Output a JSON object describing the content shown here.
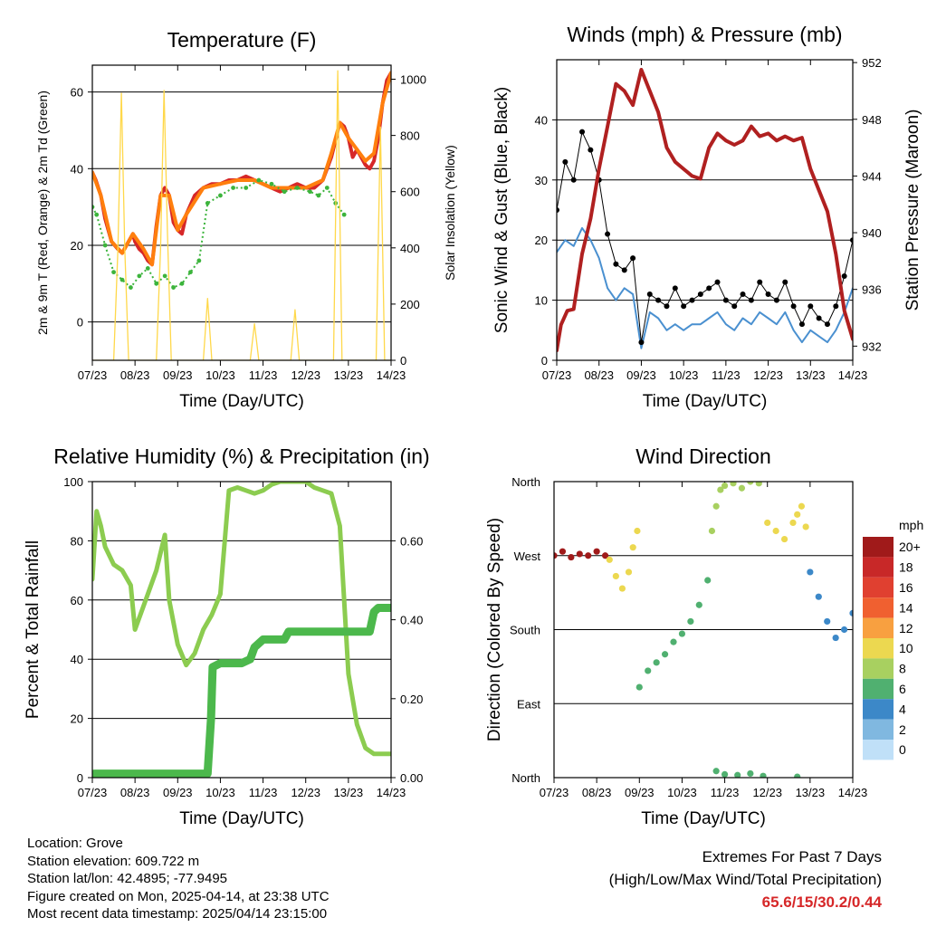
{
  "x_ticks": [
    "07/23",
    "08/23",
    "09/23",
    "10/23",
    "11/23",
    "12/23",
    "13/23",
    "14/23"
  ],
  "colors": {
    "temp_2m": "#d62728",
    "temp_9m": "#ff7f0e",
    "dewpoint": "#3cb43c",
    "solar": "#ffd84a",
    "wind": "#4a90d0",
    "gust": "#000000",
    "pressure": "#b02020",
    "rh": "#8ccc50",
    "rain": "#4cb84c"
  },
  "chart_data": [
    {
      "id": "temperature",
      "type": "line",
      "title": "Temperature (F)",
      "xlabel": "Time (Day/UTC)",
      "ylabel": "2m & 9m T (Red, Orange) & 2m Td (Green)",
      "ylabel_right": "Solar Insolation (Yellow)",
      "ylim": [
        -10,
        67
      ],
      "ylim_right": [
        0,
        1050
      ],
      "yticks": [
        0,
        20,
        40,
        60
      ],
      "yticks_right": [
        0,
        200,
        400,
        600,
        800,
        1000
      ],
      "grid": true,
      "series": [
        {
          "name": "2m T",
          "color_key": "temp_2m",
          "x": [
            0,
            0.08,
            0.2,
            0.3,
            0.45,
            0.6,
            0.7,
            0.8,
            0.95,
            1.0,
            1.1,
            1.2,
            1.3,
            1.4,
            1.5,
            1.6,
            1.7,
            1.8,
            1.9,
            2.0,
            2.1,
            2.2,
            2.4,
            2.6,
            2.8,
            3.0,
            3.2,
            3.4,
            3.6,
            3.8,
            4.0,
            4.2,
            4.4,
            4.6,
            4.8,
            5.0,
            5.2,
            5.4,
            5.6,
            5.8,
            5.9,
            6.0,
            6.1,
            6.2,
            6.3,
            6.4,
            6.5,
            6.6,
            6.7,
            6.8,
            6.9,
            7.0
          ],
          "y": [
            39,
            37,
            33,
            27,
            21,
            19,
            18,
            20,
            23,
            21,
            19,
            18,
            16,
            15,
            25,
            33,
            35,
            33,
            26,
            24,
            23,
            28,
            33,
            35,
            36,
            36,
            37,
            37,
            38,
            37,
            36,
            35,
            34,
            35,
            36,
            35,
            35,
            37,
            43,
            52,
            51,
            48,
            43,
            45,
            43,
            41,
            40,
            42,
            48,
            57,
            63,
            65
          ]
        },
        {
          "name": "9m T",
          "color_key": "temp_9m",
          "x": [
            0,
            0.2,
            0.45,
            0.7,
            0.95,
            1.2,
            1.4,
            1.6,
            1.8,
            2.0,
            2.2,
            2.6,
            3.0,
            3.4,
            3.8,
            4.2,
            4.6,
            5.0,
            5.4,
            5.6,
            5.8,
            6.0,
            6.2,
            6.4,
            6.6,
            6.8,
            7.0
          ],
          "y": [
            39,
            33,
            21,
            18,
            23,
            19,
            15,
            33,
            33,
            24,
            28,
            35,
            36,
            37,
            37,
            35,
            35,
            35,
            37,
            44,
            52,
            48,
            45,
            42,
            44,
            57,
            65
          ]
        },
        {
          "name": "2m Td",
          "color_key": "dewpoint",
          "x": [
            0,
            0.1,
            0.3,
            0.5,
            0.7,
            0.9,
            1.1,
            1.3,
            1.5,
            1.7,
            1.9,
            2.1,
            2.3,
            2.5,
            2.7,
            3.0,
            3.3,
            3.6,
            3.9,
            4.2,
            4.5,
            4.8,
            5.1,
            5.3,
            5.5,
            5.7,
            5.9
          ],
          "y": [
            30,
            28,
            20,
            13,
            11,
            9,
            12,
            14,
            10,
            12,
            9,
            10,
            13,
            16,
            31,
            33,
            35,
            35,
            37,
            36,
            34,
            35,
            34,
            33,
            35,
            31,
            28
          ]
        },
        {
          "name": "Solar",
          "color_key": "solar",
          "axis": "right",
          "x": [
            0,
            0.3,
            0.5,
            0.6,
            0.68,
            0.76,
            0.85,
            1.0,
            1.3,
            1.5,
            1.6,
            1.68,
            1.76,
            1.85,
            2.0,
            2.4,
            2.6,
            2.7,
            2.8,
            3.0,
            3.5,
            3.7,
            3.8,
            3.9,
            4.5,
            4.65,
            4.75,
            4.85,
            5.5,
            5.65,
            5.75,
            5.85,
            6.5,
            6.65,
            6.75,
            6.85,
            7.0
          ],
          "y": [
            0,
            0,
            0,
            400,
            950,
            400,
            0,
            0,
            0,
            0,
            400,
            960,
            450,
            0,
            0,
            0,
            0,
            220,
            0,
            0,
            0,
            0,
            130,
            0,
            0,
            0,
            180,
            0,
            0,
            0,
            1030,
            0,
            0,
            0,
            830,
            0,
            0
          ]
        }
      ]
    },
    {
      "id": "winds",
      "type": "line",
      "title": "Winds (mph) & Pressure (mb)",
      "xlabel": "Time (Day/UTC)",
      "ylabel": "Sonic Wind & Gust (Blue, Black)",
      "ylabel_right": "Station Pressure (Maroon)",
      "ylim": [
        0,
        50
      ],
      "ylim_right": [
        931,
        952.2
      ],
      "yticks": [
        0,
        10,
        20,
        30,
        40
      ],
      "yticks_right": [
        932,
        936,
        940,
        944,
        948,
        952
      ],
      "grid": true,
      "series": [
        {
          "name": "Sonic Wind",
          "color_key": "wind",
          "x": [
            0,
            0.2,
            0.4,
            0.6,
            0.8,
            1.0,
            1.2,
            1.4,
            1.6,
            1.8,
            2.0,
            2.2,
            2.4,
            2.6,
            2.8,
            3.0,
            3.2,
            3.4,
            3.6,
            3.8,
            4.0,
            4.2,
            4.4,
            4.6,
            4.8,
            5.0,
            5.2,
            5.4,
            5.6,
            5.8,
            6.0,
            6.2,
            6.4,
            6.6,
            6.8,
            7.0
          ],
          "y": [
            18,
            20,
            19,
            22,
            20,
            17,
            12,
            10,
            12,
            11,
            2,
            8,
            7,
            5,
            6,
            5,
            6,
            6,
            7,
            8,
            6,
            5,
            7,
            6,
            8,
            7,
            6,
            8,
            5,
            3,
            5,
            4,
            3,
            5,
            8,
            12
          ]
        },
        {
          "name": "Gust",
          "color_key": "gust",
          "x": [
            0,
            0.2,
            0.4,
            0.6,
            0.8,
            1.0,
            1.2,
            1.4,
            1.6,
            1.8,
            2.0,
            2.2,
            2.4,
            2.6,
            2.8,
            3.0,
            3.2,
            3.4,
            3.6,
            3.8,
            4.0,
            4.2,
            4.4,
            4.6,
            4.8,
            5.0,
            5.2,
            5.4,
            5.6,
            5.8,
            6.0,
            6.2,
            6.4,
            6.6,
            6.8,
            7.0
          ],
          "y": [
            25,
            33,
            30,
            38,
            35,
            30,
            21,
            16,
            15,
            17,
            3,
            11,
            10,
            9,
            12,
            9,
            10,
            11,
            12,
            13,
            10,
            9,
            11,
            10,
            13,
            11,
            10,
            13,
            9,
            6,
            9,
            7,
            6,
            9,
            14,
            20
          ]
        },
        {
          "name": "Pressure",
          "color_key": "pressure",
          "axis": "right",
          "x": [
            0,
            0.1,
            0.25,
            0.4,
            0.6,
            0.8,
            1.0,
            1.2,
            1.4,
            1.6,
            1.8,
            2.0,
            2.2,
            2.4,
            2.6,
            2.8,
            3.0,
            3.2,
            3.4,
            3.6,
            3.8,
            4.0,
            4.2,
            4.4,
            4.6,
            4.8,
            5.0,
            5.2,
            5.4,
            5.6,
            5.8,
            6.0,
            6.2,
            6.4,
            6.6,
            6.8,
            7.0
          ],
          "y": [
            931.7,
            933.5,
            934.5,
            934.6,
            938.5,
            941,
            944.5,
            947.5,
            950.5,
            950,
            949,
            951.5,
            950,
            948.5,
            946,
            945,
            944.5,
            944,
            943.8,
            946,
            947,
            946.5,
            946.2,
            946.5,
            947.5,
            946.8,
            947,
            946.5,
            946.8,
            946.5,
            946.7,
            944.5,
            943,
            941.5,
            938.5,
            934.5,
            932.5
          ]
        }
      ]
    },
    {
      "id": "humidity",
      "type": "line",
      "title": "Relative Humidity (%) & Precipitation (in)",
      "xlabel": "Time (Day/UTC)",
      "ylabel": "Percent & Total Rainfall",
      "ylim": [
        0,
        100
      ],
      "ylim_right": [
        0,
        0.75
      ],
      "yticks": [
        0,
        20,
        40,
        60,
        80,
        100
      ],
      "yticks_right": [
        "0.00",
        "0.20",
        "0.40",
        "0.60"
      ],
      "grid": true,
      "series": [
        {
          "name": "RH",
          "color_key": "rh",
          "x": [
            0,
            0.1,
            0.2,
            0.3,
            0.5,
            0.7,
            0.9,
            1.0,
            1.2,
            1.3,
            1.5,
            1.7,
            1.8,
            2.0,
            2.2,
            2.4,
            2.6,
            2.8,
            3.0,
            3.2,
            3.4,
            3.6,
            3.8,
            4.0,
            4.2,
            4.4,
            4.6,
            4.8,
            5.0,
            5.2,
            5.4,
            5.6,
            5.8,
            6.0,
            6.2,
            6.4,
            6.6,
            6.8,
            7.0
          ],
          "y": [
            67,
            90,
            85,
            78,
            72,
            70,
            65,
            50,
            58,
            62,
            70,
            82,
            60,
            45,
            38,
            42,
            50,
            55,
            62,
            97,
            98,
            97,
            96,
            97,
            99,
            100,
            100,
            100,
            100,
            98,
            97,
            96,
            85,
            35,
            18,
            10,
            8,
            8,
            8
          ]
        },
        {
          "name": "Total Rainfall",
          "color_key": "rain",
          "axis": "right",
          "x": [
            0,
            0.05,
            2.7,
            2.78,
            2.82,
            3.0,
            3.5,
            3.7,
            3.8,
            4.0,
            4.3,
            4.5,
            4.6,
            4.8,
            5.0,
            5.5,
            6.0,
            6.5,
            6.6,
            6.7,
            7.0
          ],
          "y": [
            0.0,
            0.01,
            0.01,
            0.15,
            0.28,
            0.29,
            0.29,
            0.3,
            0.33,
            0.35,
            0.35,
            0.35,
            0.37,
            0.37,
            0.37,
            0.37,
            0.37,
            0.37,
            0.42,
            0.43,
            0.43
          ]
        }
      ]
    },
    {
      "id": "direction",
      "type": "scatter",
      "title": "Wind Direction",
      "xlabel": "Time (Day/UTC)",
      "ylabel": "Direction (Colored By Speed)",
      "ylim": [
        0,
        360
      ],
      "yticks": [
        "North",
        "East",
        "South",
        "West",
        "North"
      ],
      "grid": true,
      "colorbar_label": "mph",
      "colorbar_labels": [
        "20+",
        "18",
        "16",
        "14",
        "12",
        "10",
        "8",
        "6",
        "4",
        "2",
        "0"
      ],
      "colorbar_colors": [
        "#a01a1a",
        "#c82828",
        "#e04030",
        "#f06030",
        "#f8a040",
        "#ecd850",
        "#a8d060",
        "#50b070",
        "#3c88c8",
        "#80b8e0",
        "#c0e0f8"
      ],
      "points": [
        {
          "x": [
            0,
            0.2,
            0.4,
            0.6,
            0.8,
            1.0,
            1.2
          ],
          "y": [
            270,
            275,
            268,
            272,
            270,
            275,
            270
          ],
          "speed": 20
        },
        {
          "x": [
            1.3,
            1.45,
            1.6,
            1.75,
            1.85,
            1.95
          ],
          "y": [
            265,
            245,
            230,
            250,
            280,
            300
          ],
          "speed": 10
        },
        {
          "x": [
            2.0,
            2.2,
            2.4,
            2.6,
            2.8,
            3.0,
            3.2,
            3.4,
            3.6
          ],
          "y": [
            110,
            130,
            140,
            150,
            165,
            175,
            190,
            210,
            240
          ],
          "speed": 6
        },
        {
          "x": [
            3.7,
            3.8,
            3.9,
            4.0,
            4.2,
            4.4,
            4.6,
            4.8
          ],
          "y": [
            300,
            330,
            350,
            355,
            358,
            352,
            360,
            358
          ],
          "speed": 8
        },
        {
          "x": [
            5.0,
            5.2,
            5.4,
            5.6,
            5.7,
            5.8,
            5.9
          ],
          "y": [
            310,
            300,
            290,
            310,
            320,
            330,
            305
          ],
          "speed": 10
        },
        {
          "x": [
            6.0,
            6.2,
            6.4,
            6.6,
            6.8,
            7.0
          ],
          "y": [
            250,
            220,
            190,
            170,
            180,
            200
          ],
          "speed": 4
        },
        {
          "x": [
            3.8,
            4.0,
            4.3,
            4.6,
            4.9,
            5.7
          ],
          "y": [
            8,
            4,
            3,
            5,
            2,
            1
          ],
          "speed": 6
        }
      ]
    }
  ],
  "info": {
    "location": "Location: Grove",
    "elevation": "Station elevation: 609.722 m",
    "latlon": "Station lat/lon: 42.4895; -77.9495",
    "created": "Figure created on Mon, 2025-04-14, at 23:38 UTC",
    "timestamp": "Most recent data timestamp: 2025/04/14 23:15:00"
  },
  "extremes": {
    "title": "Extremes For Past 7 Days",
    "subtitle": "(High/Low/Max Wind/Total Precipitation)",
    "values": "65.6/15/30.2/0.44"
  }
}
